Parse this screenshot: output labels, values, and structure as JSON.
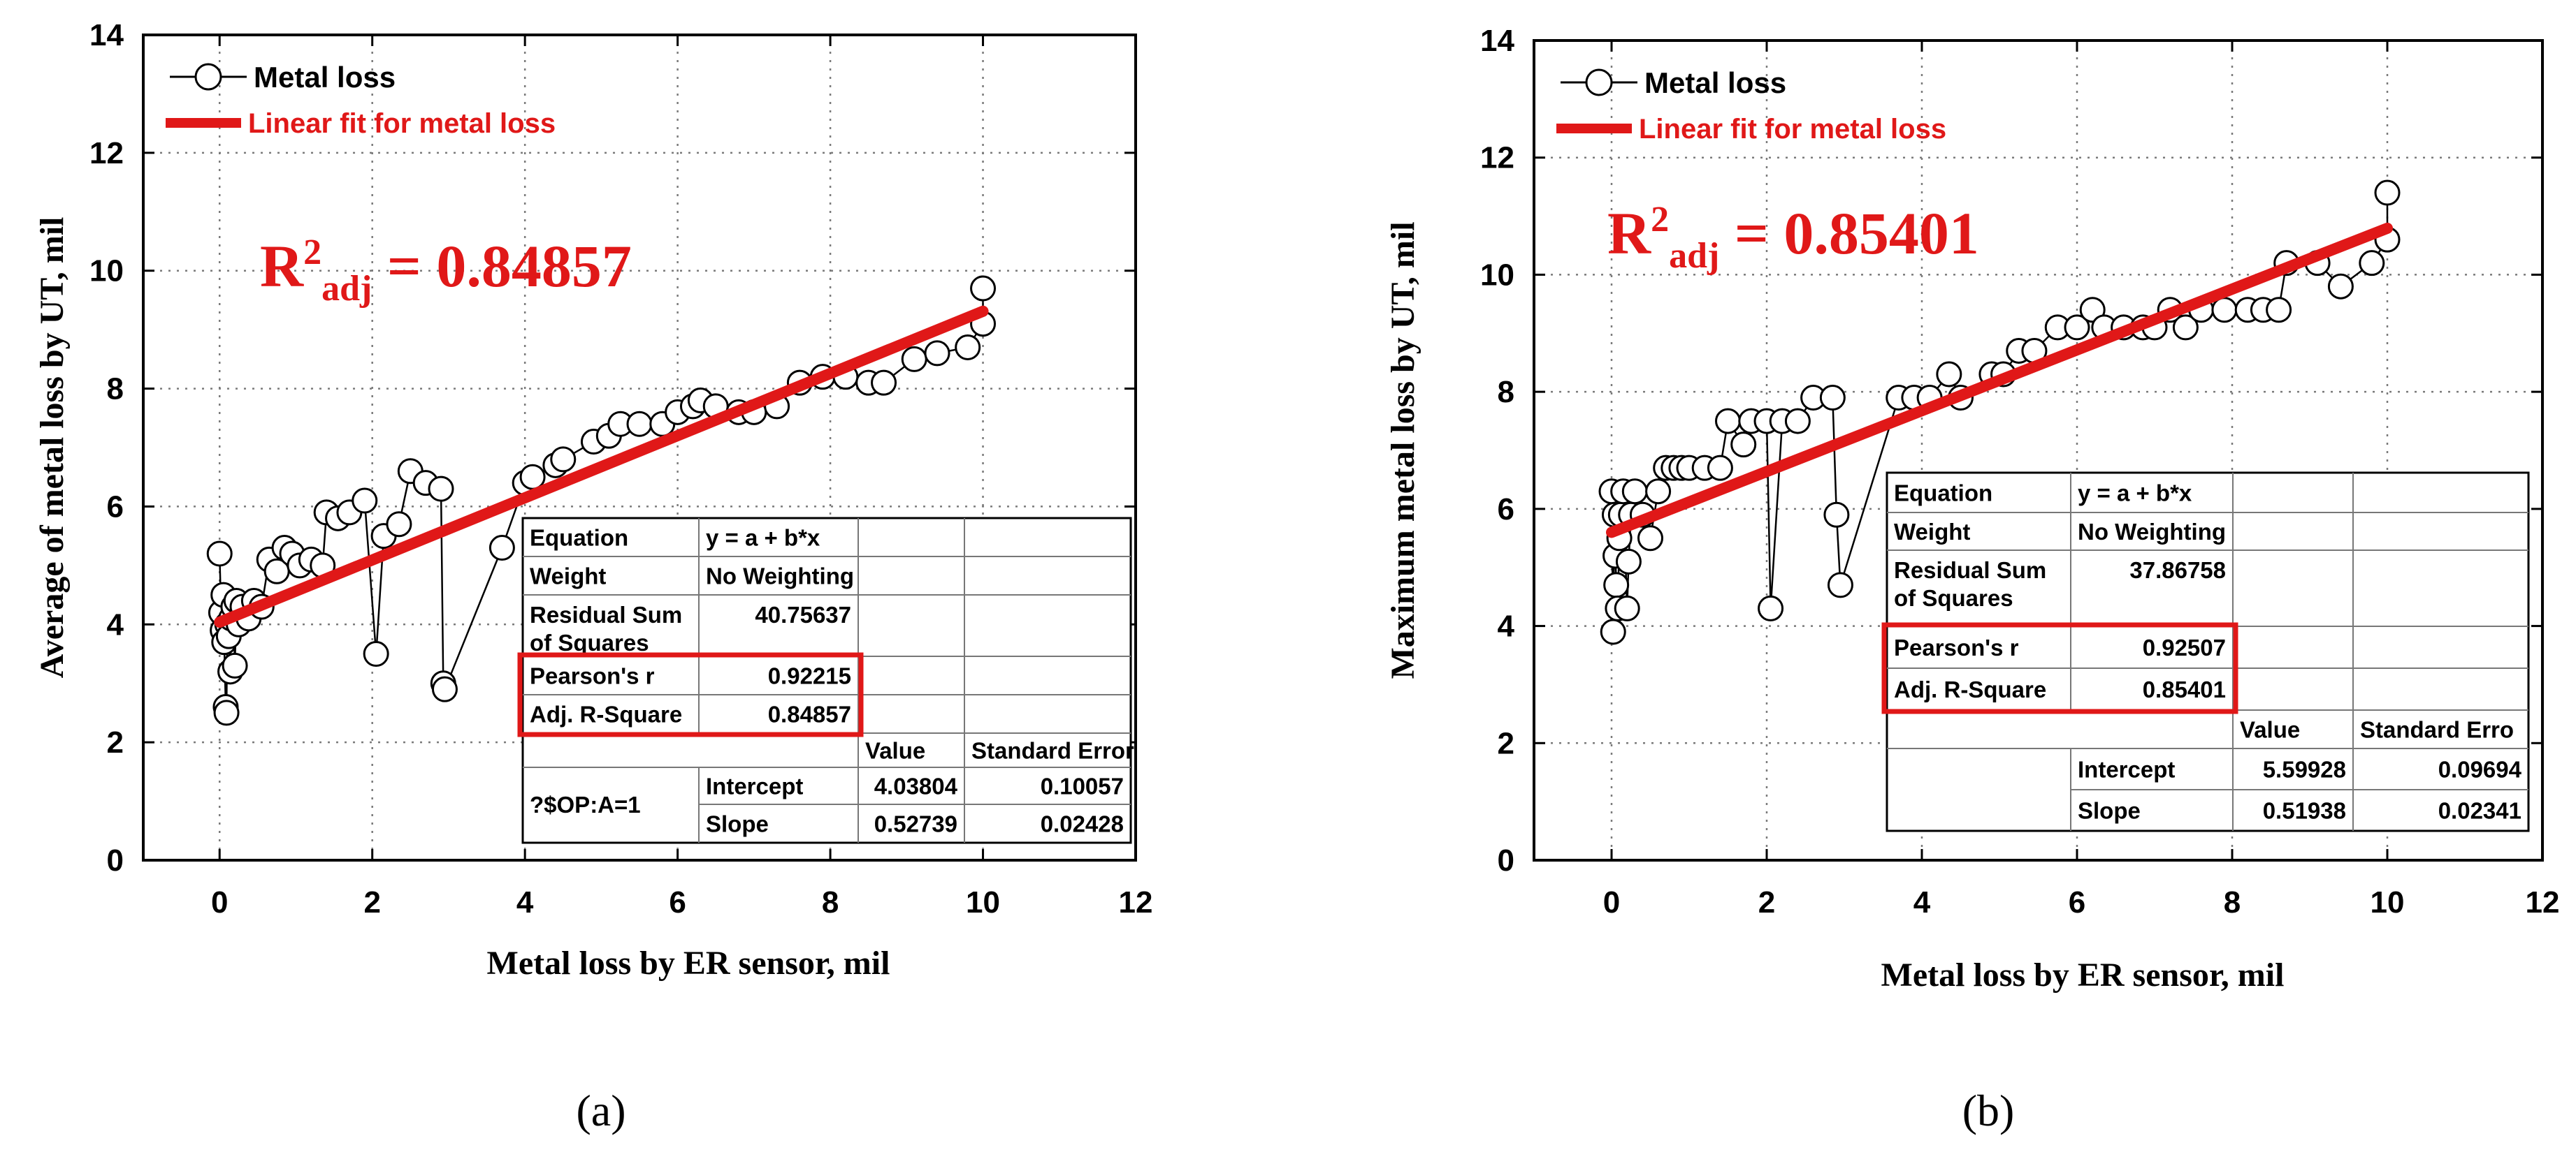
{
  "figure": {
    "colors": {
      "accent": "#e01818",
      "ink": "#000000",
      "grid": "#7a7a7a",
      "background": "#ffffff"
    }
  },
  "chart_data": [
    {
      "type": "scatter",
      "panel_label": "(a)",
      "panel_letter": "a",
      "xlabel": "Metal loss by ER sensor, mil",
      "ylabel": "Average of metal loss by UT, mil",
      "xlim": [
        -1,
        12
      ],
      "ylim": [
        0,
        14
      ],
      "xticks": [
        0,
        2,
        4,
        6,
        8,
        10,
        12
      ],
      "yticks": [
        0,
        2,
        4,
        6,
        8,
        10,
        12,
        14
      ],
      "grid": true,
      "legend": {
        "position": "top-left",
        "entries": [
          {
            "label": "Metal loss",
            "style": "line-marker"
          },
          {
            "label": "Linear fit for metal loss",
            "style": "thick-line"
          }
        ]
      },
      "annotation": {
        "prefix": "R",
        "sup": "2",
        "sub": "adj",
        "value": " = 0.84857"
      },
      "series": [
        {
          "name": "Metal loss",
          "points": [
            [
              0.0,
              5.2
            ],
            [
              0.02,
              4.2
            ],
            [
              0.04,
              3.9
            ],
            [
              0.05,
              4.5
            ],
            [
              0.06,
              3.7
            ],
            [
              0.08,
              2.6
            ],
            [
              0.09,
              2.5
            ],
            [
              0.1,
              4.0
            ],
            [
              0.12,
              3.8
            ],
            [
              0.14,
              3.2
            ],
            [
              0.15,
              4.1
            ],
            [
              0.18,
              4.3
            ],
            [
              0.2,
              3.3
            ],
            [
              0.22,
              4.4
            ],
            [
              0.25,
              4.0
            ],
            [
              0.3,
              4.3
            ],
            [
              0.38,
              4.1
            ],
            [
              0.45,
              4.4
            ],
            [
              0.55,
              4.3
            ],
            [
              0.65,
              5.1
            ],
            [
              0.75,
              4.9
            ],
            [
              0.85,
              5.3
            ],
            [
              0.95,
              5.2
            ],
            [
              1.05,
              5.0
            ],
            [
              1.2,
              5.1
            ],
            [
              1.35,
              5.0
            ],
            [
              1.4,
              5.9
            ],
            [
              1.55,
              5.8
            ],
            [
              1.7,
              5.9
            ],
            [
              1.9,
              6.1
            ],
            [
              2.05,
              3.5
            ],
            [
              2.15,
              5.5
            ],
            [
              2.35,
              5.7
            ],
            [
              2.5,
              6.6
            ],
            [
              2.7,
              6.4
            ],
            [
              2.9,
              6.3
            ],
            [
              2.93,
              3.0
            ],
            [
              2.95,
              2.9
            ],
            [
              3.7,
              5.3
            ],
            [
              4.0,
              6.4
            ],
            [
              4.1,
              6.5
            ],
            [
              4.4,
              6.7
            ],
            [
              4.5,
              6.8
            ],
            [
              4.9,
              7.1
            ],
            [
              5.1,
              7.2
            ],
            [
              5.25,
              7.4
            ],
            [
              5.5,
              7.4
            ],
            [
              5.8,
              7.4
            ],
            [
              6.0,
              7.6
            ],
            [
              6.2,
              7.7
            ],
            [
              6.3,
              7.8
            ],
            [
              6.5,
              7.7
            ],
            [
              6.8,
              7.6
            ],
            [
              7.0,
              7.6
            ],
            [
              7.3,
              7.7
            ],
            [
              7.6,
              8.1
            ],
            [
              7.9,
              8.2
            ],
            [
              8.2,
              8.2
            ],
            [
              8.5,
              8.1
            ],
            [
              8.7,
              8.1
            ],
            [
              9.1,
              8.5
            ],
            [
              9.4,
              8.6
            ],
            [
              9.8,
              8.7
            ],
            [
              10.0,
              9.1
            ],
            [
              10.0,
              9.7
            ]
          ]
        }
      ],
      "fit": {
        "name": "Linear fit for metal loss",
        "intercept": 4.03804,
        "slope": 0.52739,
        "x_range": [
          0,
          10
        ]
      },
      "stats_table": {
        "col_value": "Value",
        "col_error": "Standard Error",
        "equation_label": "Equation",
        "equation_value": "y = a + b*x",
        "weight_label": "Weight",
        "weight_value": "No Weighting",
        "rss_label_1": "Residual Sum",
        "rss_label_2": "of Squares",
        "rss_value": "40.75637",
        "pearson_label": "Pearson's r",
        "pearson_value": "0.92215",
        "adjr2_label": "Adj. R-Square",
        "adjr2_value": "0.84857",
        "group_label": "?$OP:A=1",
        "intercept_label": "Intercept",
        "intercept_value": "4.03804",
        "intercept_error": "0.10057",
        "slope_label": "Slope",
        "slope_value": "0.52739",
        "slope_error": "0.02428"
      }
    },
    {
      "type": "scatter",
      "panel_label": "(b)",
      "panel_letter": "b",
      "xlabel": "Metal loss by ER sensor, mil",
      "ylabel": "Maximum metal loss by UT, mil",
      "xlim": [
        -1,
        12
      ],
      "ylim": [
        0,
        14
      ],
      "xticks": [
        0,
        2,
        4,
        6,
        8,
        10,
        12
      ],
      "yticks": [
        0,
        2,
        4,
        6,
        8,
        10,
        12,
        14
      ],
      "grid": true,
      "legend": {
        "position": "top-left",
        "entries": [
          {
            "label": "Metal loss",
            "style": "line-marker"
          },
          {
            "label": "Linear fit for metal loss",
            "style": "thick-line"
          }
        ]
      },
      "annotation": {
        "prefix": "R",
        "sup": "2",
        "sub": "adj",
        "value": " = 0.85401"
      },
      "series": [
        {
          "name": "Metal loss",
          "points": [
            [
              0.0,
              6.3
            ],
            [
              0.02,
              3.9
            ],
            [
              0.04,
              5.9
            ],
            [
              0.05,
              5.2
            ],
            [
              0.06,
              4.7
            ],
            [
              0.08,
              4.3
            ],
            [
              0.1,
              5.5
            ],
            [
              0.12,
              5.9
            ],
            [
              0.15,
              6.3
            ],
            [
              0.2,
              4.3
            ],
            [
              0.22,
              5.1
            ],
            [
              0.25,
              5.9
            ],
            [
              0.3,
              6.3
            ],
            [
              0.4,
              5.9
            ],
            [
              0.5,
              5.5
            ],
            [
              0.6,
              6.3
            ],
            [
              0.7,
              6.7
            ],
            [
              0.8,
              6.7
            ],
            [
              0.9,
              6.7
            ],
            [
              1.0,
              6.7
            ],
            [
              1.2,
              6.7
            ],
            [
              1.4,
              6.7
            ],
            [
              1.5,
              7.5
            ],
            [
              1.7,
              7.1
            ],
            [
              1.8,
              7.5
            ],
            [
              2.0,
              7.5
            ],
            [
              2.05,
              4.3
            ],
            [
              2.2,
              7.5
            ],
            [
              2.4,
              7.5
            ],
            [
              2.6,
              7.9
            ],
            [
              2.85,
              7.9
            ],
            [
              2.9,
              5.9
            ],
            [
              2.95,
              4.7
            ],
            [
              3.7,
              7.9
            ],
            [
              3.9,
              7.9
            ],
            [
              4.1,
              7.9
            ],
            [
              4.35,
              8.3
            ],
            [
              4.5,
              7.9
            ],
            [
              4.9,
              8.3
            ],
            [
              5.05,
              8.3
            ],
            [
              5.25,
              8.7
            ],
            [
              5.45,
              8.7
            ],
            [
              5.75,
              9.1
            ],
            [
              6.0,
              9.1
            ],
            [
              6.2,
              9.4
            ],
            [
              6.35,
              9.1
            ],
            [
              6.6,
              9.1
            ],
            [
              6.85,
              9.1
            ],
            [
              7.0,
              9.1
            ],
            [
              7.2,
              9.4
            ],
            [
              7.4,
              9.1
            ],
            [
              7.6,
              9.4
            ],
            [
              7.9,
              9.4
            ],
            [
              8.2,
              9.4
            ],
            [
              8.4,
              9.4
            ],
            [
              8.6,
              9.4
            ],
            [
              8.7,
              10.2
            ],
            [
              9.1,
              10.2
            ],
            [
              9.4,
              9.8
            ],
            [
              9.8,
              10.2
            ],
            [
              10.0,
              10.6
            ],
            [
              10.0,
              11.4
            ]
          ]
        }
      ],
      "fit": {
        "name": "Linear fit for metal loss",
        "intercept": 5.59928,
        "slope": 0.51938,
        "x_range": [
          0,
          10
        ]
      },
      "stats_table": {
        "col_value": "Value",
        "col_error": "Standard Erro",
        "equation_label": "Equation",
        "equation_value": "y = a + b*x",
        "weight_label": "Weight",
        "weight_value": "No Weighting",
        "rss_label_1": "Residual Sum",
        "rss_label_2": "of Squares",
        "rss_value": "37.86758",
        "pearson_label": "Pearson's r",
        "pearson_value": "0.92507",
        "adjr2_label": "Adj. R-Square",
        "adjr2_value": "0.85401",
        "group_label": "",
        "intercept_label": "Intercept",
        "intercept_value": "5.59928",
        "intercept_error": "0.09694",
        "slope_label": "Slope",
        "slope_value": "0.51938",
        "slope_error": "0.02341"
      }
    }
  ]
}
